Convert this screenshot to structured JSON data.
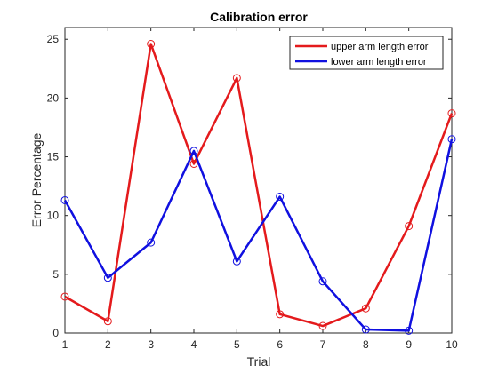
{
  "chart_data": {
    "type": "line",
    "title": "Calibration error",
    "xlabel": "Trial",
    "ylabel": "Error Percentage",
    "xlim": [
      1,
      10
    ],
    "ylim": [
      0,
      26
    ],
    "xticks": [
      1,
      2,
      3,
      4,
      5,
      6,
      7,
      8,
      9,
      10
    ],
    "yticks": [
      0,
      5,
      10,
      15,
      20,
      25
    ],
    "x": [
      1,
      2,
      3,
      4,
      5,
      6,
      7,
      8,
      9,
      10
    ],
    "grid": false,
    "legend_position": "top-right",
    "series": [
      {
        "name": "upper arm length error",
        "color": "#e41a1c",
        "marker": "circle",
        "values": [
          3.1,
          1.0,
          24.6,
          14.4,
          21.7,
          1.6,
          0.6,
          2.1,
          9.1,
          18.7
        ]
      },
      {
        "name": "lower arm length error",
        "color": "#1010e0",
        "marker": "circle",
        "values": [
          11.3,
          4.7,
          7.7,
          15.5,
          6.1,
          11.6,
          4.4,
          0.3,
          0.2,
          16.5
        ]
      }
    ]
  }
}
